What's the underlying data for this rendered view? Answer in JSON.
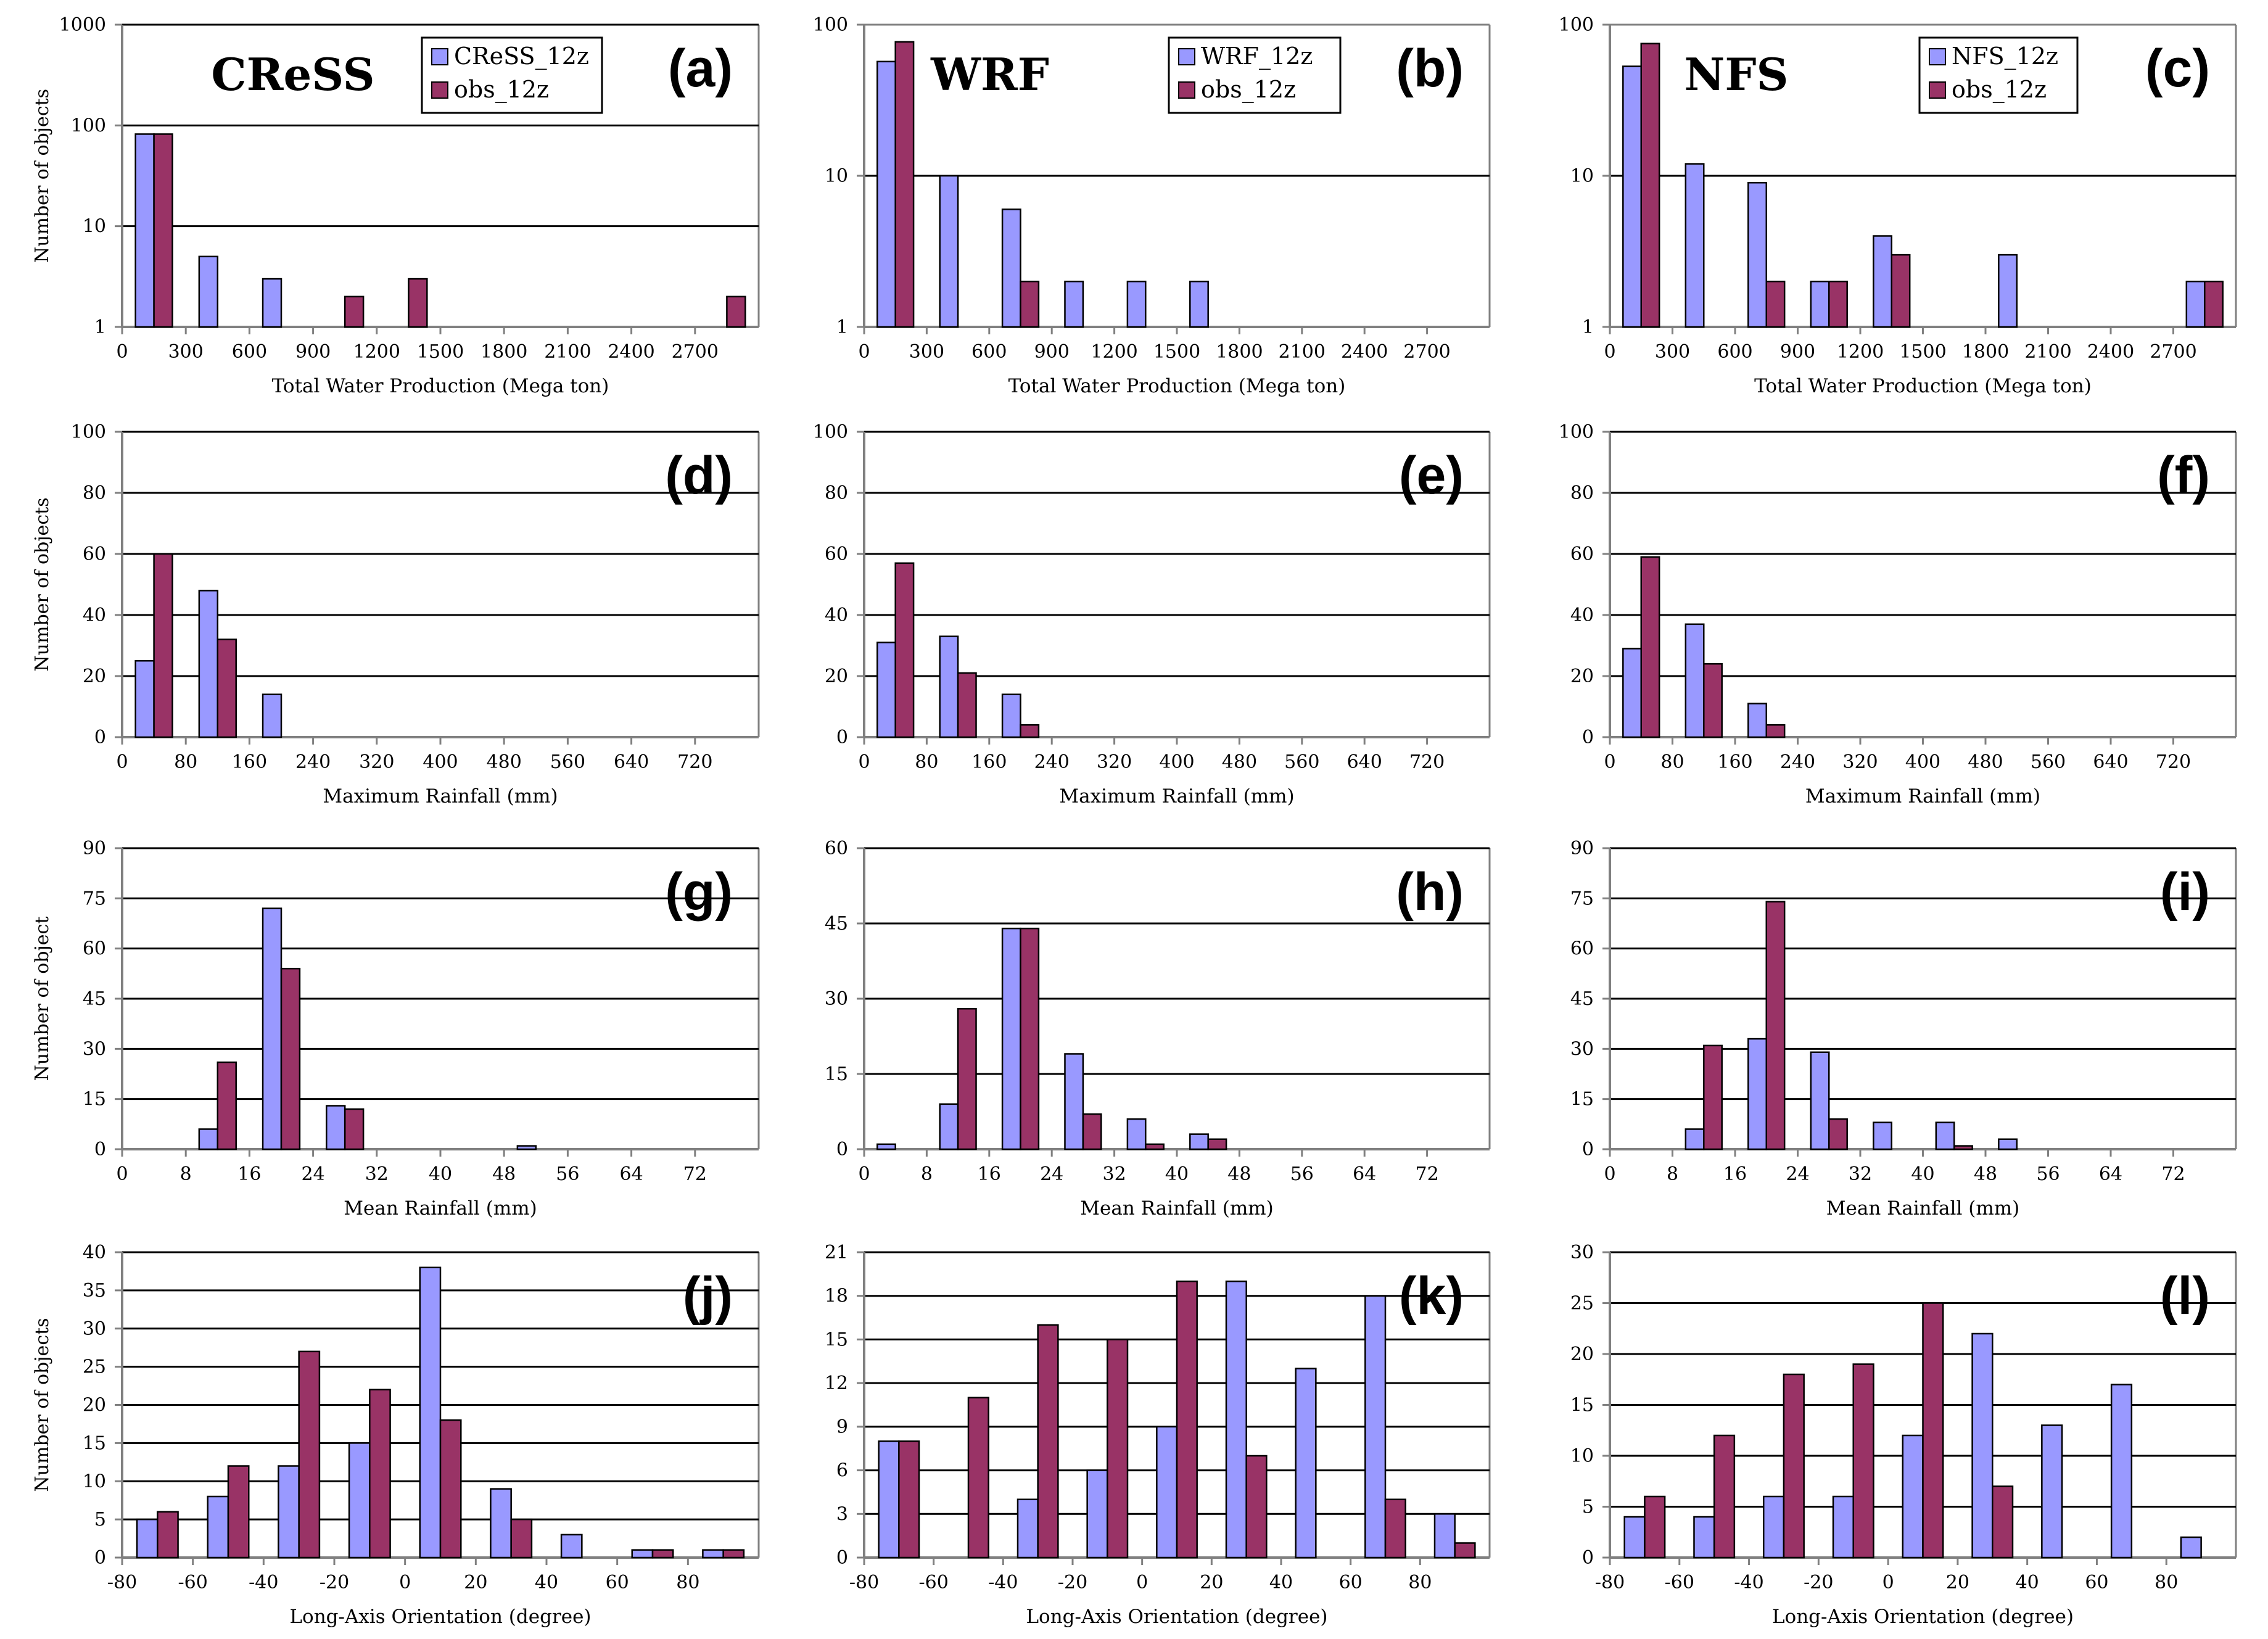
{
  "colors": {
    "model": "#9999ff",
    "obs": "#993366",
    "grid": "#000000",
    "axis": "#808080"
  },
  "chart_data": [
    {
      "panel": "(a)",
      "type": "bar",
      "scale": "log",
      "model": "CReSS",
      "title": "CReSS",
      "legend": [
        "CReSS_12z",
        "obs_12z"
      ],
      "xlabel": "Total Water Production (Mega ton)",
      "ylabel": "Number of objects",
      "xrange": [
        0,
        3000
      ],
      "binwidth": 300,
      "ylim": [
        1,
        1000
      ],
      "yticks": [
        1,
        10,
        100,
        1000
      ],
      "ytick_labels": [
        "1",
        "10",
        "100",
        "1000"
      ],
      "grid": [
        1,
        10,
        100,
        1000
      ],
      "xticks": [
        0,
        300,
        600,
        900,
        1200,
        1500,
        1800,
        2100,
        2400,
        2700
      ],
      "x": [
        150,
        450,
        750,
        1050,
        1350,
        2850
      ],
      "series": [
        {
          "name": "CReSS_12z",
          "values": [
            82,
            5,
            3,
            null,
            null,
            null
          ]
        },
        {
          "name": "obs_12z",
          "values": [
            82,
            null,
            null,
            2,
            3,
            2
          ]
        }
      ]
    },
    {
      "panel": "(b)",
      "type": "bar",
      "scale": "log",
      "model": "WRF",
      "title": "WRF",
      "legend": [
        "WRF_12z",
        "obs_12z"
      ],
      "xlabel": "Total Water Production (Mega ton)",
      "ylabel": "",
      "xrange": [
        0,
        3000
      ],
      "binwidth": 300,
      "ylim": [
        1,
        100
      ],
      "yticks": [
        1,
        10,
        100
      ],
      "ytick_labels": [
        "1",
        "10",
        "100"
      ],
      "grid": [
        10
      ],
      "xticks": [
        0,
        300,
        600,
        900,
        1200,
        1500,
        1800,
        2100,
        2400,
        2700
      ],
      "x": [
        150,
        450,
        750,
        1050,
        1350,
        1650
      ],
      "series": [
        {
          "name": "WRF_12z",
          "values": [
            57,
            10,
            6,
            2,
            2,
            2
          ]
        },
        {
          "name": "obs_12z",
          "values": [
            77,
            null,
            2,
            null,
            null,
            null
          ]
        }
      ]
    },
    {
      "panel": "(c)",
      "type": "bar",
      "scale": "log",
      "model": "NFS",
      "title": "NFS",
      "legend": [
        "NFS_12z",
        "obs_12z"
      ],
      "xlabel": "Total Water Production (Mega ton)",
      "ylabel": "",
      "xrange": [
        0,
        3000
      ],
      "binwidth": 300,
      "ylim": [
        1,
        100
      ],
      "yticks": [
        1,
        10,
        100
      ],
      "ytick_labels": [
        "1",
        "10",
        "100"
      ],
      "grid": [
        10
      ],
      "xticks": [
        0,
        300,
        600,
        900,
        1200,
        1500,
        1800,
        2100,
        2400,
        2700
      ],
      "x": [
        150,
        450,
        750,
        1050,
        1350,
        1950,
        2850
      ],
      "series": [
        {
          "name": "NFS_12z",
          "values": [
            53,
            12,
            9,
            2,
            4,
            3,
            2
          ]
        },
        {
          "name": "obs_12z",
          "values": [
            75,
            null,
            2,
            2,
            3,
            null,
            2
          ]
        }
      ]
    },
    {
      "panel": "(d)",
      "type": "bar",
      "scale": "linear",
      "model": "CReSS",
      "title": "",
      "legend": [],
      "xlabel": "Maximum Rainfall (mm)",
      "ylabel": "Number of objects",
      "xrange": [
        0,
        800
      ],
      "binwidth": 80,
      "ylim": [
        0,
        100
      ],
      "yticks": [
        0,
        20,
        40,
        60,
        80,
        100
      ],
      "ytick_labels": [
        "0",
        "20",
        "40",
        "60",
        "80",
        "100"
      ],
      "grid": [
        20,
        40,
        60,
        80,
        100
      ],
      "xticks": [
        0,
        80,
        160,
        240,
        320,
        400,
        480,
        560,
        640,
        720
      ],
      "x": [
        40,
        120,
        200
      ],
      "series": [
        {
          "name": "CReSS_12z",
          "values": [
            25,
            48,
            14
          ]
        },
        {
          "name": "obs_12z",
          "values": [
            60,
            32,
            null
          ]
        }
      ]
    },
    {
      "panel": "(e)",
      "type": "bar",
      "scale": "linear",
      "model": "WRF",
      "title": "",
      "legend": [],
      "xlabel": "Maximum Rainfall (mm)",
      "ylabel": "",
      "xrange": [
        0,
        800
      ],
      "binwidth": 80,
      "ylim": [
        0,
        100
      ],
      "yticks": [
        0,
        20,
        40,
        60,
        80,
        100
      ],
      "ytick_labels": [
        "0",
        "20",
        "40",
        "60",
        "80",
        "100"
      ],
      "grid": [
        20,
        40,
        60,
        80,
        100
      ],
      "xticks": [
        0,
        80,
        160,
        240,
        320,
        400,
        480,
        560,
        640,
        720
      ],
      "x": [
        40,
        120,
        200
      ],
      "series": [
        {
          "name": "WRF_12z",
          "values": [
            31,
            33,
            14
          ]
        },
        {
          "name": "obs_12z",
          "values": [
            57,
            21,
            4
          ]
        }
      ]
    },
    {
      "panel": "(f)",
      "type": "bar",
      "scale": "linear",
      "model": "NFS",
      "title": "",
      "legend": [],
      "xlabel": "Maximum Rainfall (mm)",
      "ylabel": "",
      "xrange": [
        0,
        800
      ],
      "binwidth": 80,
      "ylim": [
        0,
        100
      ],
      "yticks": [
        0,
        20,
        40,
        60,
        80,
        100
      ],
      "ytick_labels": [
        "0",
        "20",
        "40",
        "60",
        "80",
        "100"
      ],
      "grid": [
        20,
        40,
        60,
        80,
        100
      ],
      "xticks": [
        0,
        80,
        160,
        240,
        320,
        400,
        480,
        560,
        640,
        720
      ],
      "x": [
        40,
        120,
        200
      ],
      "series": [
        {
          "name": "NFS_12z",
          "values": [
            29,
            37,
            11
          ]
        },
        {
          "name": "obs_12z",
          "values": [
            59,
            24,
            4
          ]
        }
      ]
    },
    {
      "panel": "(g)",
      "type": "bar",
      "scale": "linear",
      "model": "CReSS",
      "title": "",
      "legend": [],
      "xlabel": "Mean Rainfall (mm)",
      "ylabel": "Number of object",
      "xrange": [
        0,
        80
      ],
      "binwidth": 8,
      "ylim": [
        0,
        90
      ],
      "yticks": [
        0,
        15,
        30,
        45,
        60,
        75,
        90
      ],
      "ytick_labels": [
        "0",
        "15",
        "30",
        "45",
        "60",
        "75",
        "90"
      ],
      "grid": [
        15,
        30,
        45,
        60,
        75,
        90
      ],
      "xticks": [
        0,
        8,
        16,
        24,
        32,
        40,
        48,
        56,
        64,
        72
      ],
      "x": [
        12,
        20,
        28,
        52
      ],
      "series": [
        {
          "name": "CReSS_12z",
          "values": [
            6,
            72,
            13,
            1
          ]
        },
        {
          "name": "obs_12z",
          "values": [
            26,
            54,
            12,
            null
          ]
        }
      ]
    },
    {
      "panel": "(h)",
      "type": "bar",
      "scale": "linear",
      "model": "WRF",
      "title": "",
      "legend": [],
      "xlabel": "Mean Rainfall (mm)",
      "ylabel": "",
      "xrange": [
        0,
        80
      ],
      "binwidth": 8,
      "ylim": [
        0,
        60
      ],
      "yticks": [
        0,
        15,
        30,
        45,
        60
      ],
      "ytick_labels": [
        "0",
        "15",
        "30",
        "45",
        "60"
      ],
      "grid": [
        15,
        30,
        45,
        60
      ],
      "xticks": [
        0,
        8,
        16,
        24,
        32,
        40,
        48,
        56,
        64,
        72
      ],
      "x": [
        4,
        12,
        20,
        28,
        36,
        44
      ],
      "series": [
        {
          "name": "WRF_12z",
          "values": [
            1,
            9,
            44,
            19,
            6,
            3
          ]
        },
        {
          "name": "obs_12z",
          "values": [
            null,
            28,
            44,
            7,
            1,
            2
          ]
        }
      ]
    },
    {
      "panel": "(i)",
      "type": "bar",
      "scale": "linear",
      "model": "NFS",
      "title": "",
      "legend": [],
      "xlabel": "Mean Rainfall (mm)",
      "ylabel": "",
      "xrange": [
        0,
        80
      ],
      "binwidth": 8,
      "ylim": [
        0,
        90
      ],
      "yticks": [
        0,
        15,
        30,
        45,
        60,
        75,
        90
      ],
      "ytick_labels": [
        "0",
        "15",
        "30",
        "45",
        "60",
        "75",
        "90"
      ],
      "grid": [
        15,
        30,
        45,
        60,
        75,
        90
      ],
      "xticks": [
        0,
        8,
        16,
        24,
        32,
        40,
        48,
        56,
        64,
        72
      ],
      "x": [
        12,
        20,
        28,
        36,
        44,
        52
      ],
      "series": [
        {
          "name": "NFS_12z",
          "values": [
            6,
            33,
            29,
            8,
            8,
            3
          ]
        },
        {
          "name": "obs_12z",
          "values": [
            31,
            74,
            9,
            null,
            1,
            null
          ]
        }
      ]
    },
    {
      "panel": "(j)",
      "type": "bar",
      "scale": "linear",
      "model": "CReSS",
      "title": "",
      "legend": [],
      "xlabel": "Long-Axis Orientation (degree)",
      "ylabel": "Number of objects",
      "xrange": [
        -80,
        100
      ],
      "binwidth": 20,
      "ylim": [
        0,
        40
      ],
      "yticks": [
        0,
        5,
        10,
        15,
        20,
        25,
        30,
        35,
        40
      ],
      "ytick_labels": [
        "0",
        "5",
        "10",
        "15",
        "20",
        "25",
        "30",
        "35",
        "40"
      ],
      "grid": [
        5,
        10,
        15,
        20,
        25,
        30,
        35,
        40
      ],
      "xticks": [
        -80,
        -60,
        -40,
        -20,
        0,
        20,
        40,
        60,
        80
      ],
      "x": [
        -70,
        -50,
        -30,
        -10,
        10,
        30,
        50,
        70,
        90
      ],
      "series": [
        {
          "name": "CReSS_12z",
          "values": [
            5,
            8,
            12,
            15,
            38,
            9,
            3,
            1,
            1
          ]
        },
        {
          "name": "obs_12z",
          "values": [
            6,
            12,
            27,
            22,
            18,
            5,
            null,
            1,
            1
          ]
        }
      ]
    },
    {
      "panel": "(k)",
      "type": "bar",
      "scale": "linear",
      "model": "WRF",
      "title": "",
      "legend": [],
      "xlabel": "Long-Axis Orientation (degree)",
      "ylabel": "",
      "xrange": [
        -80,
        100
      ],
      "binwidth": 20,
      "ylim": [
        0,
        21
      ],
      "yticks": [
        0,
        3,
        6,
        9,
        12,
        15,
        18,
        21
      ],
      "ytick_labels": [
        "0",
        "3",
        "6",
        "9",
        "12",
        "15",
        "18",
        "21"
      ],
      "grid": [
        3,
        6,
        9,
        12,
        15,
        18,
        21
      ],
      "xticks": [
        -80,
        -60,
        -40,
        -20,
        0,
        20,
        40,
        60,
        80
      ],
      "x": [
        -70,
        -50,
        -30,
        -10,
        10,
        30,
        50,
        70,
        90
      ],
      "series": [
        {
          "name": "WRF_12z",
          "values": [
            8,
            null,
            4,
            6,
            9,
            19,
            13,
            18,
            3
          ]
        },
        {
          "name": "obs_12z",
          "values": [
            8,
            11,
            16,
            15,
            19,
            7,
            null,
            4,
            1
          ]
        }
      ]
    },
    {
      "panel": "(l)",
      "type": "bar",
      "scale": "linear",
      "model": "NFS",
      "title": "",
      "legend": [],
      "xlabel": "Long-Axis Orientation (degree)",
      "ylabel": "",
      "xrange": [
        -80,
        100
      ],
      "binwidth": 20,
      "ylim": [
        0,
        30
      ],
      "yticks": [
        0,
        5,
        10,
        15,
        20,
        25,
        30
      ],
      "ytick_labels": [
        "0",
        "5",
        "10",
        "15",
        "20",
        "25",
        "30"
      ],
      "grid": [
        5,
        10,
        15,
        20,
        25,
        30
      ],
      "xticks": [
        -80,
        -60,
        -40,
        -20,
        0,
        20,
        40,
        60,
        80
      ],
      "x": [
        -70,
        -50,
        -30,
        -10,
        10,
        30,
        50,
        70,
        90
      ],
      "series": [
        {
          "name": "NFS_12z",
          "values": [
            4,
            4,
            6,
            6,
            12,
            22,
            13,
            17,
            2
          ]
        },
        {
          "name": "obs_12z",
          "values": [
            6,
            12,
            18,
            19,
            25,
            7,
            null,
            null,
            null
          ]
        }
      ]
    }
  ]
}
